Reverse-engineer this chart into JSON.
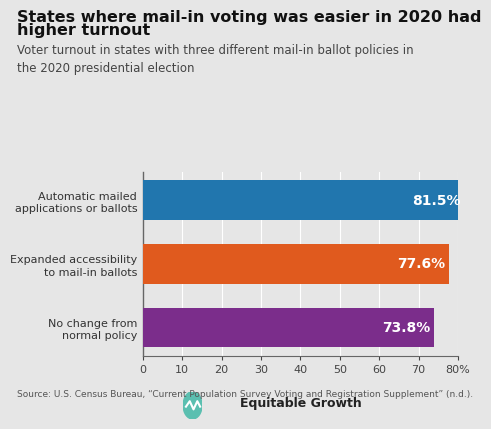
{
  "title_line1": "States where mail-in voting was easier in 2020 had",
  "title_line2": "higher turnout",
  "subtitle": "Voter turnout in states with three different mail-in ballot policies in\nthe 2020 presidential election",
  "categories": [
    "No change from\nnormal policy",
    "Expanded accessibility\nto mail-in ballots",
    "Automatic mailed\napplications or ballots"
  ],
  "values": [
    73.8,
    77.6,
    81.5
  ],
  "bar_colors": [
    "#7b2d8b",
    "#e05a1e",
    "#2176ae"
  ],
  "value_labels": [
    "73.8%",
    "77.6%",
    "81.5%"
  ],
  "xlim": [
    0,
    80
  ],
  "xticks": [
    0,
    10,
    20,
    30,
    40,
    50,
    60,
    70,
    80
  ],
  "xtick_labels": [
    "0",
    "10",
    "20",
    "30",
    "40",
    "50",
    "60",
    "70",
    "80%"
  ],
  "source_text": "Source: U.S. Census Bureau, “Current Population Survey Voting and Registration Supplement” (n.d.).",
  "logo_text": "Equitable Growth",
  "background_color": "#e6e6e6",
  "title_fontsize": 11.5,
  "subtitle_fontsize": 8.5,
  "bar_label_fontsize": 10,
  "ytick_fontsize": 8,
  "xtick_fontsize": 8,
  "source_fontsize": 6.5
}
